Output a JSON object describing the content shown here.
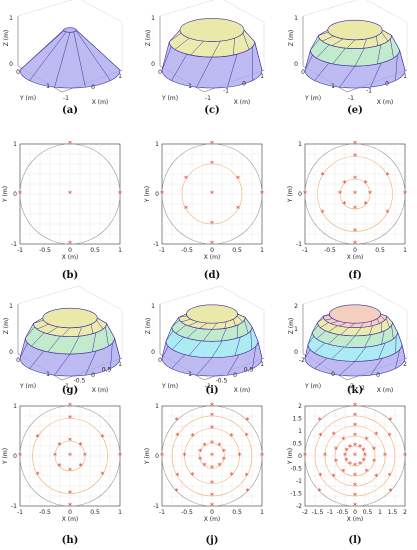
{
  "figure": {
    "panels": [
      {
        "id": "a",
        "caption": "(a)",
        "type": "dome3d",
        "rings": 1,
        "axes": {
          "z_label": "Z (m)",
          "y_label": "Y (m)",
          "x_label": "X (m)",
          "z_ticks": [
            "0",
            "1"
          ],
          "y_ticks": [
            "0",
            "1"
          ],
          "x_ticks": [
            "-1",
            "0",
            "1"
          ]
        }
      },
      {
        "id": "b",
        "caption": "(b)",
        "type": "projection2d",
        "rings": 1,
        "axes": {
          "x_label": "X (m)",
          "y_label": "Y (m)",
          "x_ticks": [
            "-1",
            "-0.5",
            "0",
            "0.5",
            "1"
          ],
          "y_ticks": [
            "-1",
            "0",
            "1"
          ]
        }
      },
      {
        "id": "c",
        "caption": "(c)",
        "type": "dome3d",
        "rings": 2,
        "axes": {
          "z_label": "Z (m)",
          "y_label": "Y (m)",
          "x_label": "X (m)",
          "z_ticks": [
            "0",
            "1"
          ],
          "y_ticks": [
            "0",
            "1"
          ],
          "x_ticks": [
            "-1",
            "-1",
            "0",
            "1"
          ]
        }
      },
      {
        "id": "d",
        "caption": "(d)",
        "type": "projection2d",
        "rings": 2,
        "axes": {
          "x_label": "X (m)",
          "y_label": "Y (m)",
          "x_ticks": [
            "-1",
            "-0.5",
            "0",
            "0.5",
            "1"
          ],
          "y_ticks": [
            "-1",
            "0",
            "1"
          ]
        }
      },
      {
        "id": "e",
        "caption": "(e)",
        "type": "dome3d",
        "rings": 3,
        "axes": {
          "z_label": "Z (m)",
          "y_label": "Y (m)",
          "x_label": "X (m)",
          "z_ticks": [
            "0",
            "1"
          ],
          "y_ticks": [
            "0",
            "1"
          ],
          "x_ticks": [
            "-1",
            "-1",
            "0",
            "1"
          ]
        }
      },
      {
        "id": "f",
        "caption": "(f)",
        "type": "projection2d",
        "rings": 3,
        "axes": {
          "x_label": "X (m)",
          "y_label": "Y (m)",
          "x_ticks": [
            "-1",
            "-0.5",
            "0",
            "0.5",
            "1"
          ],
          "y_ticks": [
            "-1",
            "0",
            "1"
          ]
        }
      },
      {
        "id": "g",
        "caption": "(g)",
        "type": "dome3d",
        "rings": 3,
        "axes": {
          "z_label": "Z (m)",
          "y_label": "Y (m)",
          "x_label": "X (m)",
          "z_ticks": [
            "0",
            "1"
          ],
          "y_ticks": [
            "0",
            "1"
          ],
          "x_ticks": [
            "-1",
            "-0.5",
            "0",
            "0.5",
            "1"
          ]
        }
      },
      {
        "id": "h",
        "caption": "(h)",
        "type": "projection2d",
        "rings": 3,
        "axes": {
          "x_label": "X (m)",
          "y_label": "Y (m)",
          "x_ticks": [
            "-1",
            "-0.5",
            "0",
            "0.5",
            "1"
          ],
          "y_ticks": [
            "-1",
            "0",
            "1"
          ]
        }
      },
      {
        "id": "i",
        "caption": "(i)",
        "type": "dome3d",
        "rings": 4,
        "axes": {
          "z_label": "Z (m)",
          "y_label": "Y (m)",
          "x_label": "X (m)",
          "z_ticks": [
            "0",
            "1"
          ],
          "y_ticks": [
            "0",
            "1"
          ],
          "x_ticks": [
            "-1",
            "-0.5",
            "0",
            "0.5",
            "1"
          ]
        }
      },
      {
        "id": "j",
        "caption": "(j)",
        "type": "projection2d",
        "rings": 4,
        "axes": {
          "x_label": "X (m)",
          "y_label": "Y (m)",
          "x_ticks": [
            "-1",
            "-0.5",
            "0",
            "0.5",
            "1"
          ],
          "y_ticks": [
            "-1",
            "0",
            "1"
          ]
        }
      },
      {
        "id": "k",
        "caption": "(k)",
        "type": "dome3d",
        "rings": 5,
        "axes": {
          "z_label": "Z (m)",
          "y_label": "Y (m)",
          "x_label": "X (m)",
          "z_ticks": [
            "0",
            "1",
            "2"
          ],
          "y_ticks": [
            "-2",
            "0",
            "2"
          ],
          "x_ticks": [
            "-2",
            "0",
            "2"
          ]
        }
      },
      {
        "id": "l",
        "caption": "(l)",
        "type": "projection2d",
        "rings": 5,
        "axes": {
          "x_label": "X (m)",
          "y_label": "Y (m)",
          "x_ticks": [
            "-2",
            "-1.5",
            "-1",
            "-0.5",
            "0",
            "0.5",
            "1",
            "1.5",
            "2"
          ],
          "y_ticks": [
            "-2",
            "-1.5",
            "-1",
            "-0.5",
            "0",
            "0.5",
            "1",
            "1.5",
            "2"
          ]
        }
      }
    ]
  },
  "colors": {
    "background": "#ffffff",
    "dome_purple": "#b3aef0",
    "dome_edge": "#3e2f9a",
    "yellow": "#e8e7a0",
    "green": "#b7e6c4",
    "cyan": "#9ee8f2",
    "pink": "#f3c9b8",
    "marker": "#e0382a",
    "circle_gray": "#9a9a9a",
    "circle_orange": "#f0b070",
    "grid": "#e2e2e2"
  }
}
